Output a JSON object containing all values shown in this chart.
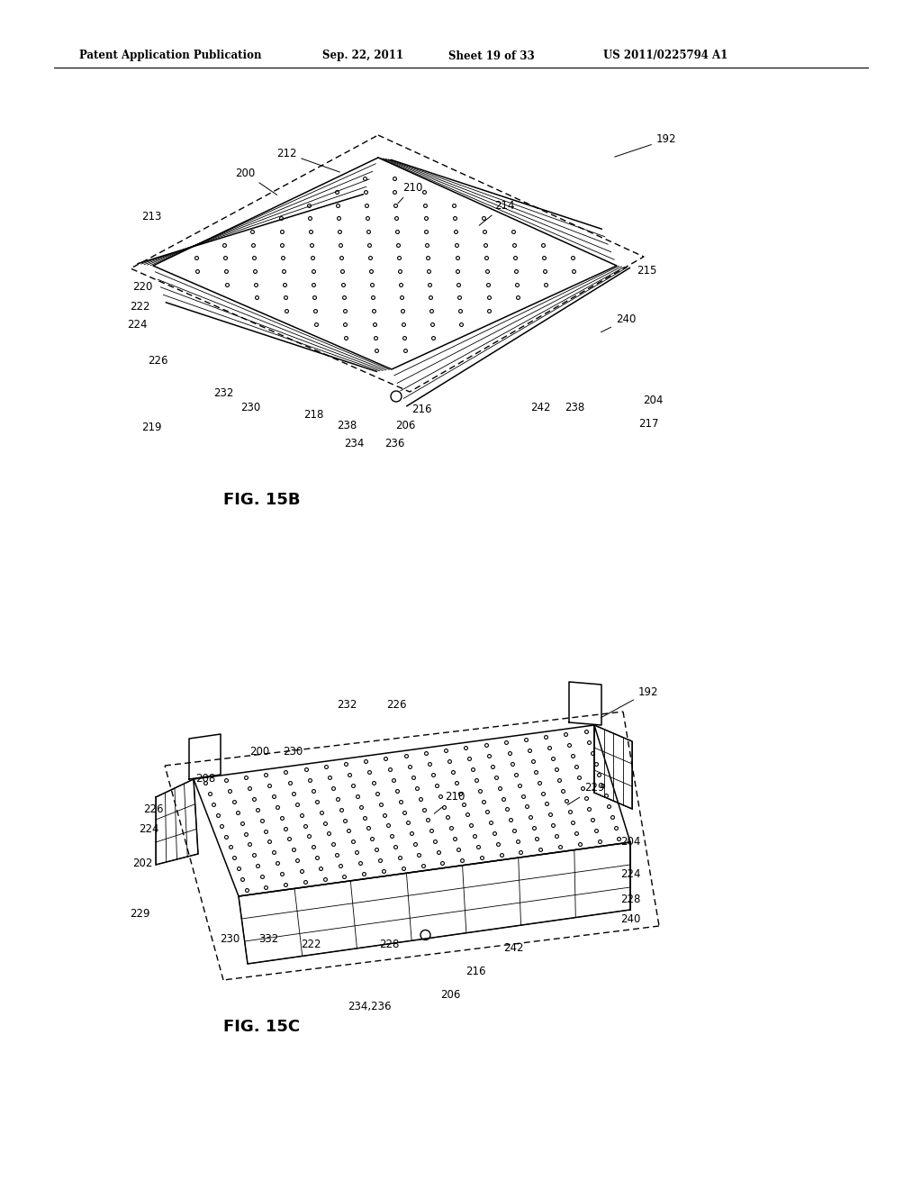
{
  "bg_color": "#ffffff",
  "header_text": "Patent Application Publication",
  "header_date": "Sep. 22, 2011",
  "header_sheet": "Sheet 19 of 33",
  "header_patent": "US 2011/0225794 A1",
  "fig1_label": "FIG. 15B",
  "fig2_label": "FIG. 15C",
  "line_color": "#000000",
  "text_color": "#000000",
  "lw_main": 1.1,
  "lw_thin": 0.6
}
